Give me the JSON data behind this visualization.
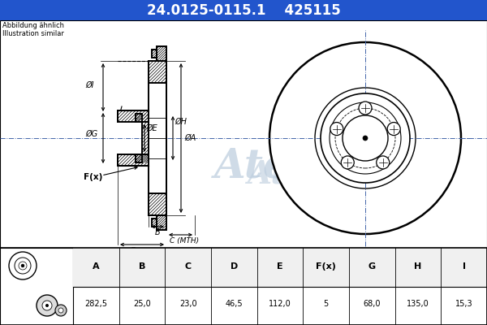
{
  "title_part": "24.0125-0115.1",
  "title_code": "425115",
  "subtitle1": "Abbildung ähnlich",
  "subtitle2": "Illustration similar",
  "bg_color": "#ccd9e8",
  "title_bg": "#2255cc",
  "title_fg": "#ffffff",
  "diagram_bg": "#ccd9e8",
  "table_headers": [
    "A",
    "B",
    "C",
    "D",
    "E",
    "F(x)",
    "G",
    "H",
    "I"
  ],
  "table_values": [
    "282,5",
    "25,0",
    "23,0",
    "46,5",
    "112,0",
    "5",
    "68,0",
    "135,0",
    "15,3"
  ],
  "header_bg": "#ffffff",
  "table_row_bg": "#ffffff",
  "text_color": "#000000",
  "border_color": "#000000",
  "centerline_color": "#4466aa",
  "watermark_color": "#bbccdd"
}
